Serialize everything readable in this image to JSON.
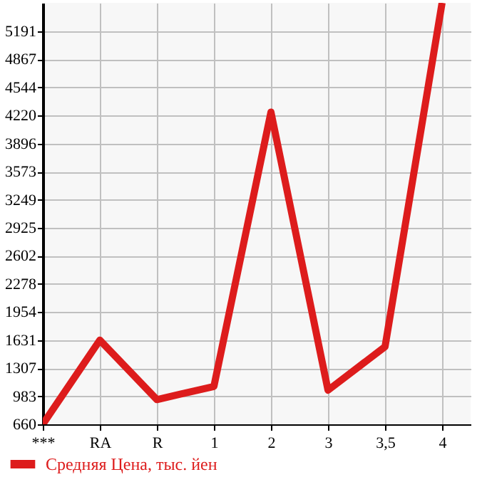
{
  "chart_data": {
    "type": "line",
    "categories": [
      "***",
      "RA",
      "R",
      "1",
      "2",
      "3",
      "3,5",
      "4"
    ],
    "series": [
      {
        "name": "Средняя Цена, тыс. йен",
        "color": "#dd1c1c",
        "values": [
          660,
          1631,
          945,
          1097,
          4260,
          1053,
          1555,
          5519
        ]
      }
    ],
    "ylim": [
      660,
      5519
    ],
    "yticks": [
      660,
      983,
      1307,
      1631,
      1954,
      2278,
      2602,
      2925,
      3249,
      3573,
      3896,
      4220,
      4544,
      4867,
      5191
    ],
    "grid": true,
    "legend": "bottom left",
    "marker": "none",
    "line_style": "solid"
  }
}
